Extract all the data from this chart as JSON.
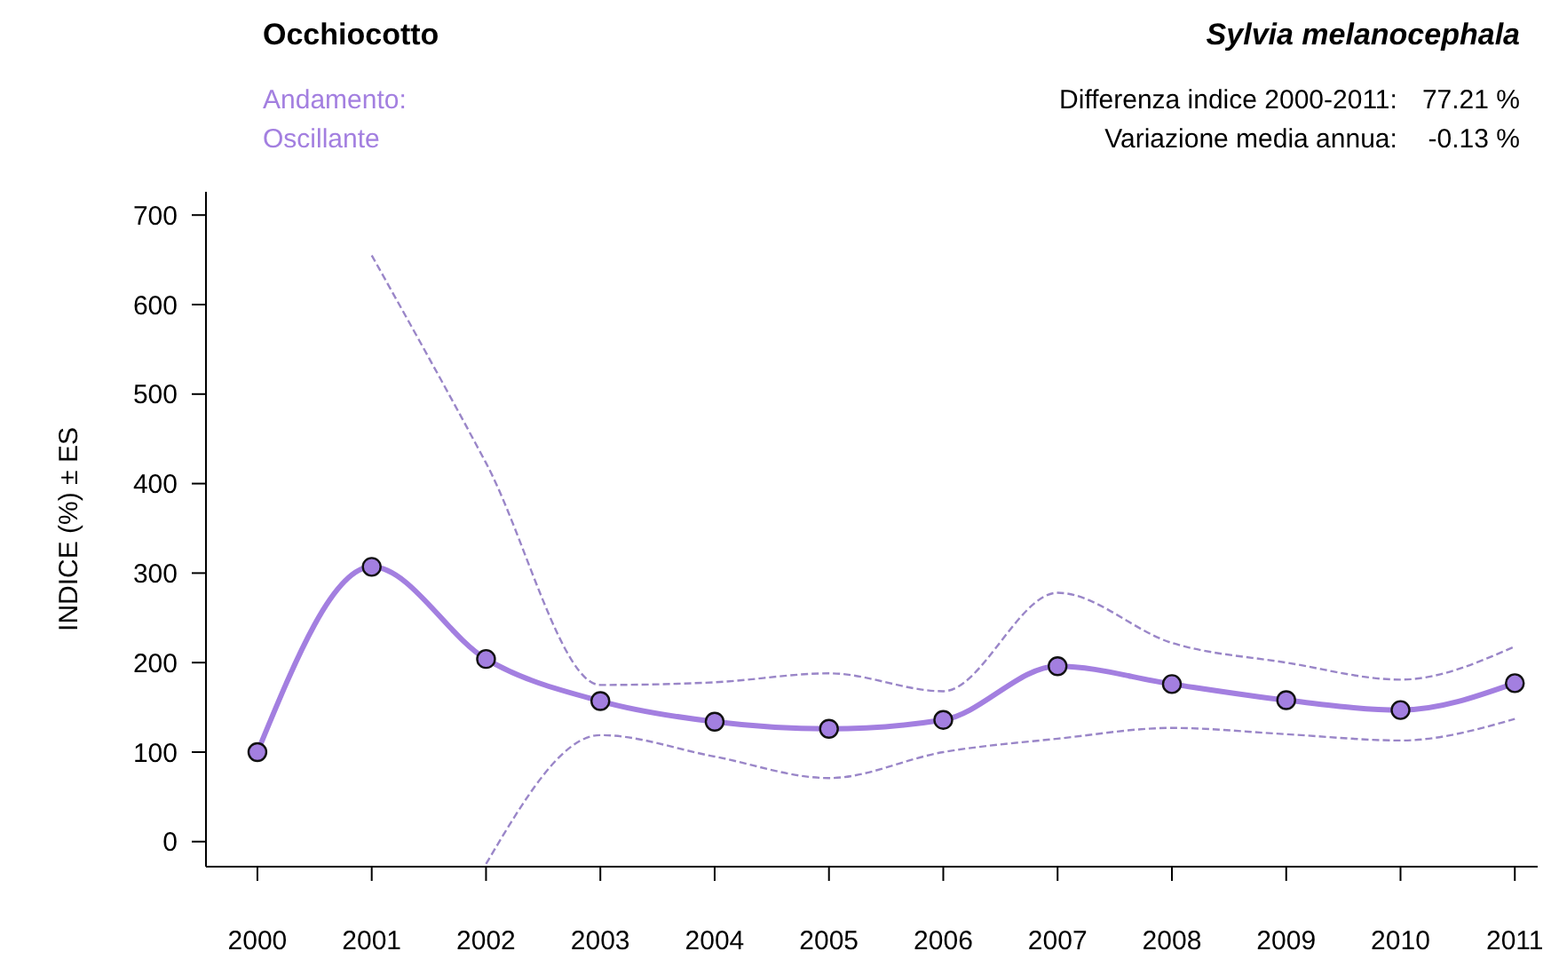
{
  "chart_data": {
    "type": "line",
    "title": "Occhiocotto",
    "subtitle": "Sylvia melanocephala",
    "ylabel": "INDICE (%) ± ES",
    "annotations": [
      "Andamento:",
      "Oscillante",
      "Differenza indice 2000-2011:",
      "77.21 %",
      "Variazione media annua:",
      "-0.13 %"
    ],
    "x": [
      2000,
      2001,
      2002,
      2003,
      2004,
      2005,
      2006,
      2007,
      2008,
      2009,
      2010,
      2011
    ],
    "xlim": [
      1999.55,
      2011.2
    ],
    "xticks": [
      2000,
      2001,
      2002,
      2003,
      2004,
      2005,
      2006,
      2007,
      2008,
      2009,
      2010,
      2011
    ],
    "ylim": [
      -28,
      726
    ],
    "yticks": [
      0,
      100,
      200,
      300,
      400,
      500,
      600,
      700
    ],
    "series": [
      {
        "color": "#a37fe0",
        "marker": "circle",
        "line_style": "solid",
        "values": [
          100,
          307,
          204,
          157,
          134,
          126,
          136,
          196,
          176,
          158,
          147,
          177
        ]
      },
      {
        "color": "#9a86c8",
        "marker": "none",
        "line_style": "dashed",
        "values": [
          null,
          655,
          423,
          175,
          178,
          188,
          168,
          278,
          222,
          200,
          181,
          218
        ]
      },
      {
        "color": "#9a86c8",
        "marker": "none",
        "line_style": "dashed",
        "values": [
          null,
          null,
          -25,
          119,
          95,
          71,
          100,
          115,
          127,
          120,
          113,
          137
        ]
      }
    ]
  }
}
